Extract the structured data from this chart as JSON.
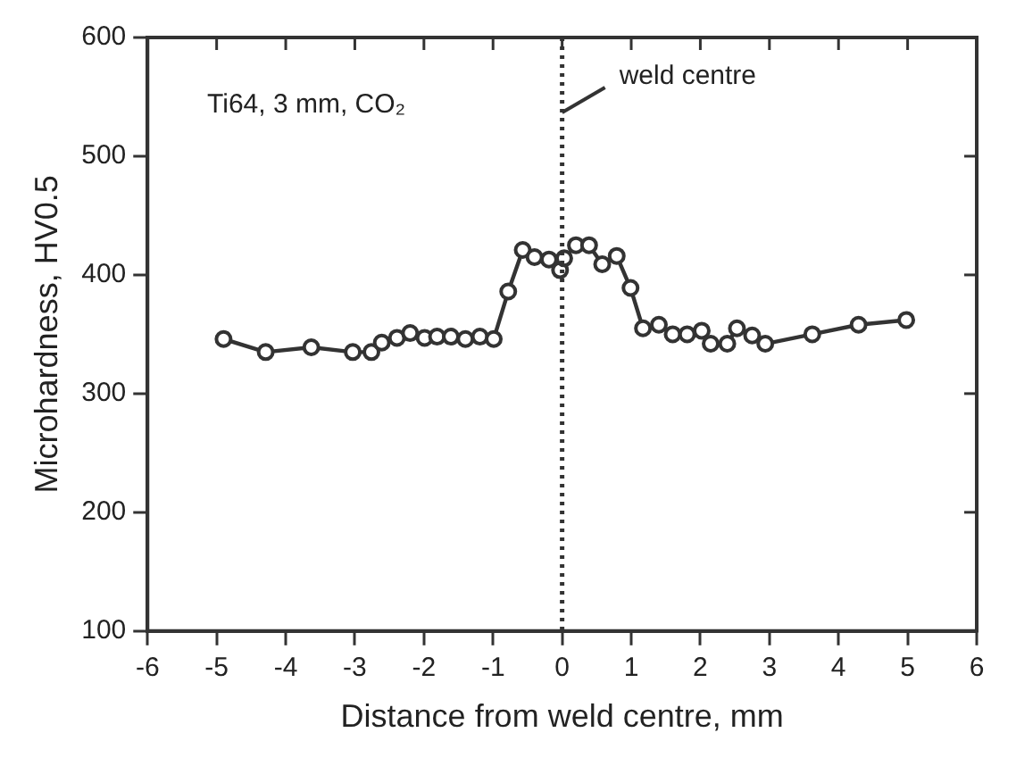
{
  "chart_data": {
    "type": "line",
    "xlabel": "Distance from weld centre, mm",
    "ylabel": "Microhardness, HV0.5",
    "annotations": [
      "Ti64, 3 mm, CO₂"
    ],
    "xlim": [
      -6,
      6
    ],
    "xticks": [
      -6,
      -5,
      -4,
      -3,
      -2,
      -1,
      0,
      1,
      2,
      3,
      4,
      5,
      6
    ],
    "ylim": [
      100,
      600
    ],
    "yticks": [
      100,
      200,
      300,
      400,
      500,
      600
    ],
    "grid": false,
    "legend": false,
    "marker": "circle",
    "line_style": "solid",
    "ref_lines": [
      {
        "axis": "x",
        "value": 0,
        "label": "weld centre",
        "line_style": "dotted"
      }
    ],
    "series": [
      {
        "color": "#333333",
        "x": [
          -4.9,
          -4.29,
          -3.63,
          -3.03,
          -2.76,
          -2.61,
          -2.39,
          -2.2,
          -1.99,
          -1.81,
          -1.61,
          -1.4,
          -1.19,
          -0.99,
          -0.78,
          -0.57,
          -0.4,
          -0.19,
          -0.03,
          0.03,
          0.2,
          0.39,
          0.58,
          0.79,
          0.99,
          1.17,
          1.4,
          1.6,
          1.81,
          2.02,
          2.15,
          2.39,
          2.53,
          2.75,
          2.94,
          3.62,
          4.29,
          4.98
        ],
        "values": [
          346,
          335,
          339,
          335,
          335,
          343,
          347,
          351,
          347,
          348,
          348,
          346,
          348,
          346,
          386,
          421,
          415,
          413,
          404,
          414,
          425,
          425,
          409,
          416,
          389,
          355,
          358,
          350,
          350,
          353,
          342,
          342,
          355,
          349,
          342,
          350,
          358,
          362
        ]
      }
    ]
  }
}
